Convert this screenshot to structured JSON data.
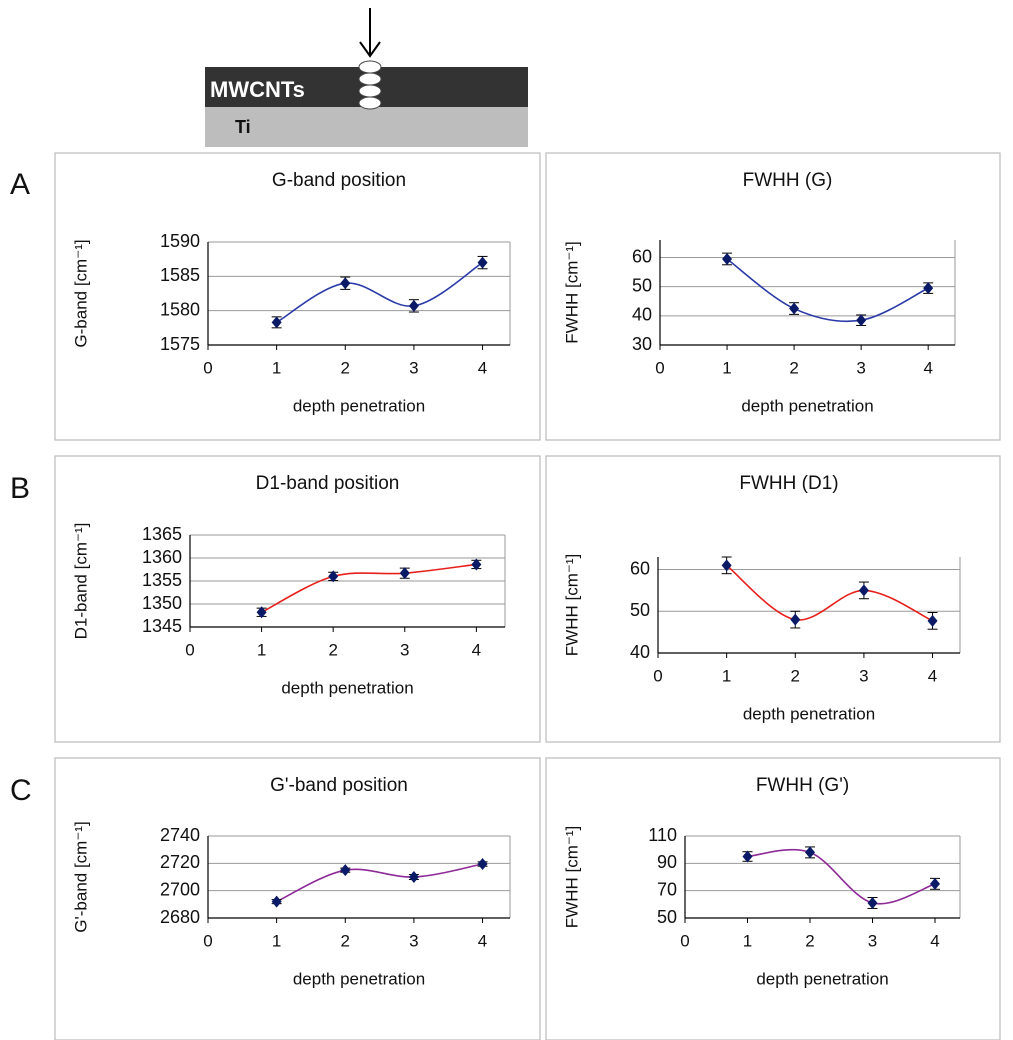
{
  "diagram": {
    "layer_top": "MWCNTs",
    "layer_bottom": "Ti"
  },
  "panel_labels": [
    "A",
    "B",
    "C"
  ],
  "chart_data": [
    {
      "type": "line",
      "title": "G-band position",
      "x_label": "depth penetration",
      "y_label": "G-band  [cm⁻¹]",
      "x": [
        1,
        2,
        3,
        4
      ],
      "values": [
        1578.3,
        1584,
        1580.7,
        1587
      ],
      "errors": [
        0.8,
        0.9,
        0.9,
        0.9
      ],
      "color": "#2a3aa8",
      "marker_color": "#0b1a66",
      "xlim": [
        0,
        4.4
      ],
      "xticks": [
        0,
        1,
        2,
        3,
        4
      ],
      "ylim": [
        1575,
        1590
      ],
      "yticks": [
        1575,
        1580,
        1585,
        1590
      ],
      "grid": true
    },
    {
      "type": "line",
      "title": "FWHH (G)",
      "x_label": "depth penetration",
      "y_label": "FWHH  [cm⁻¹]",
      "x": [
        1,
        2,
        3,
        4
      ],
      "values": [
        59.5,
        42.5,
        38.5,
        49.5
      ],
      "errors": [
        2,
        2,
        1.8,
        1.8
      ],
      "color": "#2a3aa8",
      "marker_color": "#0b1a66",
      "xlim": [
        0,
        4.4
      ],
      "xticks": [
        0,
        1,
        2,
        3,
        4
      ],
      "ylim": [
        30,
        66
      ],
      "yticks": [
        30,
        40,
        50,
        60
      ],
      "grid": true
    },
    {
      "type": "line",
      "title": "D1-band position",
      "x_label": "depth penetration",
      "y_label": "D1-band  [cm⁻¹]",
      "x": [
        1,
        2,
        3,
        4
      ],
      "values": [
        1348.2,
        1356,
        1356.7,
        1358.6
      ],
      "errors": [
        0.9,
        0.9,
        1.1,
        0.9
      ],
      "color": "#e8201c",
      "marker_color": "#0b1a66",
      "xlim": [
        0,
        4.4
      ],
      "xticks": [
        0,
        1,
        2,
        3,
        4
      ],
      "ylim": [
        1345,
        1365
      ],
      "yticks": [
        1345,
        1350,
        1355,
        1360,
        1365
      ],
      "grid": true
    },
    {
      "type": "line",
      "title": "FWHH (D1)",
      "x_label": "depth penetration",
      "y_label": "FWHH  [cm⁻¹]",
      "x": [
        1,
        2,
        3,
        4
      ],
      "values": [
        61,
        48,
        55,
        47.7
      ],
      "errors": [
        2,
        2,
        2,
        2
      ],
      "color": "#e8201c",
      "marker_color": "#0b1a66",
      "xlim": [
        0,
        4.4
      ],
      "xticks": [
        0,
        1,
        2,
        3,
        4
      ],
      "ylim": [
        40,
        63
      ],
      "yticks": [
        40,
        50,
        60
      ],
      "grid": true
    },
    {
      "type": "line",
      "title": "G'-band position",
      "x_label": "depth penetration",
      "y_label": "G'-band  [cm⁻¹]",
      "x": [
        1,
        2,
        3,
        4
      ],
      "values": [
        2692,
        2715,
        2710,
        2719.5
      ],
      "errors": [
        1.5,
        1.5,
        1.8,
        1.6
      ],
      "color": "#8e2a98",
      "marker_color": "#0b1a66",
      "xlim": [
        0,
        4.4
      ],
      "xticks": [
        0,
        1,
        2,
        3,
        4
      ],
      "ylim": [
        2680,
        2740
      ],
      "yticks": [
        2680,
        2700,
        2720,
        2740
      ],
      "grid": true
    },
    {
      "type": "line",
      "title": "FWHH (G')",
      "x_label": "depth penetration",
      "y_label": "FWHH  [cm⁻¹]",
      "x": [
        1,
        2,
        3,
        4
      ],
      "values": [
        95,
        98,
        61,
        75
      ],
      "errors": [
        3.5,
        4,
        4,
        4
      ],
      "color": "#8e2a98",
      "marker_color": "#0b1a66",
      "xlim": [
        0,
        4.4
      ],
      "xticks": [
        0,
        1,
        2,
        3,
        4
      ],
      "ylim": [
        50,
        110
      ],
      "yticks": [
        50,
        70,
        90,
        110
      ],
      "grid": true
    }
  ]
}
